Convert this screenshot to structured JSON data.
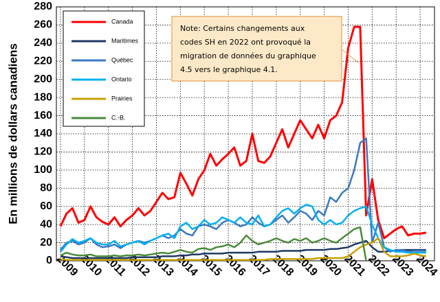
{
  "chart_data": {
    "type": "line",
    "y_label": "En millions de dollars canadiens",
    "note": [
      "Note: Certains changements aux",
      "codes SH en 2022 ont provoqué la",
      "migration de données du graphique",
      "4.5 vers le graphique 4.1."
    ],
    "x": [
      2009,
      2009.25,
      2009.5,
      2009.75,
      2010,
      2010.25,
      2010.5,
      2010.75,
      2011,
      2011.25,
      2011.5,
      2011.75,
      2012,
      2012.25,
      2012.5,
      2012.75,
      2013,
      2013.25,
      2013.5,
      2013.75,
      2014,
      2014.25,
      2014.5,
      2014.75,
      2015,
      2015.25,
      2015.5,
      2015.75,
      2016,
      2016.25,
      2016.5,
      2016.75,
      2017,
      2017.25,
      2017.5,
      2017.75,
      2018,
      2018.25,
      2018.5,
      2018.75,
      2019,
      2019.25,
      2019.5,
      2019.75,
      2020,
      2020.25,
      2020.5,
      2020.75,
      2021,
      2021.25,
      2021.5,
      2021.75,
      2022,
      2022.25,
      2022.5,
      2022.75,
      2023,
      2023.25,
      2023.5,
      2023.75,
      2024,
      2024.25
    ],
    "series": [
      {
        "name": "Canada",
        "color": "#ff0000",
        "values": [
          38,
          52,
          58,
          42,
          45,
          60,
          48,
          43,
          40,
          48,
          38,
          45,
          50,
          58,
          50,
          55,
          65,
          75,
          68,
          70,
          97,
          85,
          72,
          90,
          100,
          118,
          105,
          112,
          118,
          125,
          105,
          110,
          140,
          110,
          108,
          115,
          130,
          145,
          125,
          140,
          155,
          145,
          135,
          150,
          135,
          155,
          160,
          175,
          235,
          258,
          258,
          50,
          90,
          45,
          25,
          30,
          35,
          38,
          28,
          30,
          30,
          31
        ]
      },
      {
        "name": "Maritimes",
        "color": "#1f3864",
        "values": [
          5,
          4,
          3,
          3,
          3,
          3,
          3,
          3,
          3,
          3,
          3,
          3,
          4,
          4,
          4,
          4,
          4,
          5,
          5,
          5,
          6,
          6,
          7,
          7,
          8,
          8,
          8,
          8,
          9,
          9,
          9,
          9,
          9,
          10,
          10,
          10,
          10,
          11,
          11,
          11,
          11,
          12,
          12,
          12,
          12,
          13,
          13,
          14,
          15,
          18,
          20,
          22,
          15,
          10,
          10,
          11,
          11,
          12,
          12,
          12,
          12,
          12
        ]
      },
      {
        "name": "Québec",
        "color": "#3a78c2",
        "values": [
          12,
          20,
          22,
          18,
          20,
          25,
          18,
          15,
          16,
          18,
          14,
          18,
          20,
          22,
          20,
          22,
          25,
          28,
          25,
          28,
          35,
          30,
          28,
          38,
          40,
          38,
          35,
          42,
          45,
          42,
          38,
          40,
          48,
          42,
          38,
          40,
          45,
          50,
          42,
          48,
          55,
          52,
          45,
          55,
          50,
          70,
          65,
          75,
          80,
          100,
          130,
          135,
          20,
          42,
          15,
          10,
          12,
          12,
          10,
          11,
          11,
          11
        ]
      },
      {
        "name": "Ontario",
        "color": "#00b0f0",
        "values": [
          10,
          18,
          24,
          20,
          22,
          25,
          20,
          18,
          18,
          22,
          16,
          18,
          20,
          22,
          18,
          22,
          25,
          28,
          30,
          25,
          38,
          42,
          35,
          38,
          45,
          40,
          42,
          48,
          45,
          42,
          48,
          42,
          40,
          50,
          38,
          40,
          48,
          55,
          58,
          52,
          58,
          62,
          60,
          45,
          40,
          45,
          40,
          42,
          50,
          55,
          58,
          60,
          40,
          25,
          15,
          12,
          10,
          10,
          9,
          9,
          9,
          9
        ]
      },
      {
        "name": "Prairies",
        "color": "#c8a000",
        "values": [
          2,
          1,
          1,
          1,
          1,
          1,
          1,
          1,
          1,
          1,
          1,
          1,
          1,
          1,
          1,
          1,
          1,
          1,
          1,
          1,
          1,
          1,
          1,
          1,
          1,
          1,
          1,
          1,
          1,
          1,
          1,
          1,
          1,
          1,
          1,
          2,
          2,
          2,
          2,
          2,
          2,
          2,
          2,
          3,
          3,
          3,
          3,
          3,
          5,
          10,
          15,
          18,
          20,
          25,
          10,
          5,
          5,
          5,
          6,
          8,
          6,
          5
        ]
      },
      {
        "name": "C.-B.",
        "color": "#4a8a3a",
        "values": [
          6,
          9,
          7,
          6,
          6,
          7,
          5,
          5,
          5,
          6,
          5,
          6,
          6,
          7,
          6,
          7,
          8,
          9,
          8,
          10,
          12,
          10,
          9,
          13,
          14,
          12,
          15,
          16,
          18,
          15,
          20,
          28,
          22,
          18,
          20,
          22,
          25,
          22,
          20,
          24,
          22,
          25,
          20,
          22,
          25,
          22,
          20,
          25,
          30,
          35,
          37,
          0,
          null,
          null,
          null,
          null,
          null,
          null,
          null,
          null,
          null,
          null
        ]
      }
    ],
    "xlim": [
      2009,
      2024.6
    ],
    "xticks": [
      2009,
      2010,
      2011,
      2012,
      2013,
      2014,
      2015,
      2016,
      2017,
      2018,
      2019,
      2020,
      2021,
      2022,
      2023,
      2024
    ],
    "ylim": [
      0,
      280
    ],
    "yticks": [
      0,
      20,
      40,
      60,
      80,
      100,
      120,
      140,
      160,
      180,
      200,
      220,
      240,
      260,
      280
    ],
    "grid": true
  }
}
